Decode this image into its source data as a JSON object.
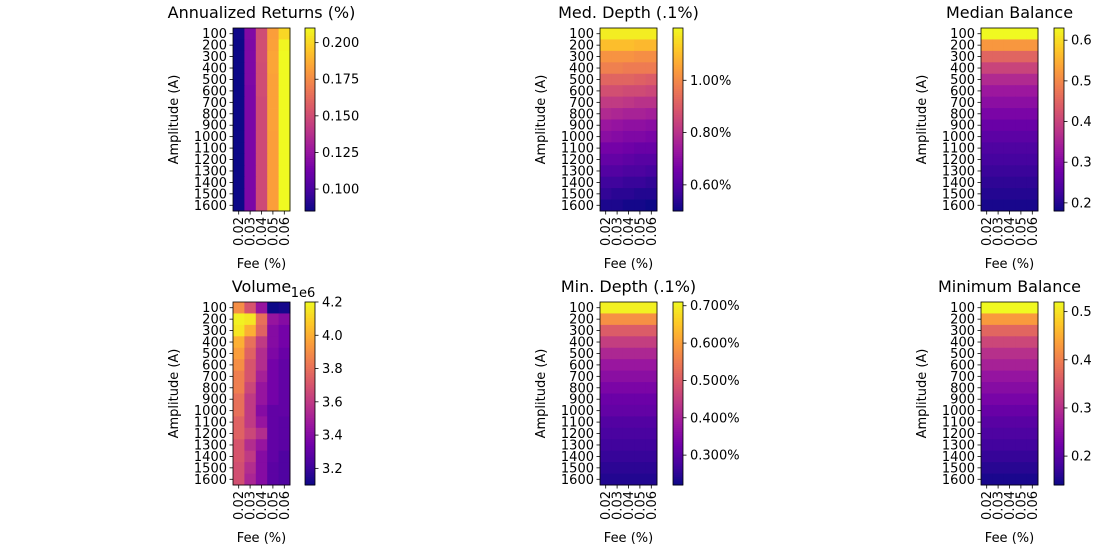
{
  "chart_data": [
    {
      "type": "heatmap",
      "title": "Annualized Returns (%)",
      "xlabel": "Fee (%)",
      "ylabel": "Amplitude (A)",
      "x_categories": [
        "0.02",
        "0.03",
        "0.04",
        "0.05",
        "0.06"
      ],
      "y_categories": [
        "100",
        "200",
        "300",
        "400",
        "500",
        "600",
        "700",
        "800",
        "900",
        "1000",
        "1100",
        "1200",
        "1300",
        "1400",
        "1500",
        "1600"
      ],
      "colorbar": {
        "min": 0.085,
        "max": 0.21,
        "ticks": [
          0.1,
          0.125,
          0.15,
          0.175,
          0.2
        ],
        "tick_labels": [
          "0.100",
          "0.125",
          "0.150",
          "0.175",
          "0.200"
        ],
        "multiplier_label": ""
      },
      "values": [
        [
          0.086,
          0.118,
          0.15,
          0.182,
          0.2
        ],
        [
          0.085,
          0.117,
          0.151,
          0.183,
          0.209
        ],
        [
          0.085,
          0.117,
          0.151,
          0.184,
          0.21
        ],
        [
          0.085,
          0.117,
          0.15,
          0.184,
          0.21
        ],
        [
          0.085,
          0.117,
          0.15,
          0.183,
          0.21
        ],
        [
          0.085,
          0.116,
          0.15,
          0.183,
          0.21
        ],
        [
          0.085,
          0.116,
          0.149,
          0.183,
          0.21
        ],
        [
          0.085,
          0.116,
          0.149,
          0.183,
          0.21
        ],
        [
          0.085,
          0.116,
          0.149,
          0.183,
          0.21
        ],
        [
          0.085,
          0.116,
          0.149,
          0.182,
          0.21
        ],
        [
          0.085,
          0.116,
          0.149,
          0.182,
          0.21
        ],
        [
          0.085,
          0.116,
          0.149,
          0.182,
          0.21
        ],
        [
          0.085,
          0.116,
          0.149,
          0.182,
          0.21
        ],
        [
          0.085,
          0.116,
          0.149,
          0.182,
          0.21
        ],
        [
          0.085,
          0.116,
          0.149,
          0.182,
          0.21
        ],
        [
          0.085,
          0.116,
          0.149,
          0.182,
          0.21
        ]
      ]
    },
    {
      "type": "heatmap",
      "title": "Med. Depth (.1%)",
      "xlabel": "Fee (%)",
      "ylabel": "Amplitude (A)",
      "x_categories": [
        "0.02",
        "0.03",
        "0.04",
        "0.05",
        "0.06"
      ],
      "y_categories": [
        "100",
        "200",
        "300",
        "400",
        "500",
        "600",
        "700",
        "800",
        "900",
        "1000",
        "1100",
        "1200",
        "1300",
        "1400",
        "1500",
        "1600"
      ],
      "colorbar": {
        "min": 0.5,
        "max": 1.2,
        "ticks": [
          0.6,
          0.8,
          1.0
        ],
        "tick_labels": [
          "0.60%",
          "0.80%",
          "1.00%"
        ],
        "multiplier_label": ""
      },
      "values": [
        [
          1.18,
          1.18,
          1.18,
          1.18,
          1.18
        ],
        [
          1.1,
          1.1,
          1.1,
          1.09,
          1.09
        ],
        [
          1.02,
          1.02,
          1.02,
          1.01,
          1.01
        ],
        [
          0.98,
          0.98,
          0.97,
          0.97,
          0.97
        ],
        [
          0.92,
          0.92,
          0.92,
          0.91,
          0.9
        ],
        [
          0.87,
          0.87,
          0.86,
          0.86,
          0.85
        ],
        [
          0.82,
          0.82,
          0.81,
          0.8,
          0.8
        ],
        [
          0.78,
          0.77,
          0.76,
          0.76,
          0.75
        ],
        [
          0.73,
          0.72,
          0.71,
          0.71,
          0.7
        ],
        [
          0.7,
          0.69,
          0.68,
          0.68,
          0.67
        ],
        [
          0.66,
          0.66,
          0.65,
          0.64,
          0.64
        ],
        [
          0.63,
          0.63,
          0.62,
          0.61,
          0.61
        ],
        [
          0.6,
          0.6,
          0.59,
          0.59,
          0.58
        ],
        [
          0.57,
          0.57,
          0.56,
          0.56,
          0.55
        ],
        [
          0.55,
          0.54,
          0.54,
          0.53,
          0.53
        ],
        [
          0.52,
          0.52,
          0.51,
          0.51,
          0.5
        ]
      ]
    },
    {
      "type": "heatmap",
      "title": "Median Balance",
      "xlabel": "Fee (%)",
      "ylabel": "Amplitude (A)",
      "x_categories": [
        "0.02",
        "0.03",
        "0.04",
        "0.05",
        "0.06"
      ],
      "y_categories": [
        "100",
        "200",
        "300",
        "400",
        "500",
        "600",
        "700",
        "800",
        "900",
        "1000",
        "1100",
        "1200",
        "1300",
        "1400",
        "1500",
        "1600"
      ],
      "colorbar": {
        "min": 0.18,
        "max": 0.63,
        "ticks": [
          0.2,
          0.3,
          0.4,
          0.5,
          0.6
        ],
        "tick_labels": [
          "0.2",
          "0.3",
          "0.4",
          "0.5",
          "0.6"
        ],
        "multiplier_label": ""
      },
      "values": [
        [
          0.63,
          0.63,
          0.63,
          0.63,
          0.63
        ],
        [
          0.52,
          0.52,
          0.52,
          0.52,
          0.52
        ],
        [
          0.45,
          0.45,
          0.45,
          0.45,
          0.45
        ],
        [
          0.4,
          0.4,
          0.4,
          0.4,
          0.4
        ],
        [
          0.36,
          0.36,
          0.36,
          0.36,
          0.36
        ],
        [
          0.33,
          0.33,
          0.33,
          0.33,
          0.33
        ],
        [
          0.31,
          0.31,
          0.31,
          0.31,
          0.31
        ],
        [
          0.29,
          0.29,
          0.29,
          0.29,
          0.29
        ],
        [
          0.27,
          0.27,
          0.27,
          0.27,
          0.27
        ],
        [
          0.255,
          0.255,
          0.255,
          0.255,
          0.255
        ],
        [
          0.24,
          0.24,
          0.24,
          0.24,
          0.24
        ],
        [
          0.23,
          0.23,
          0.23,
          0.23,
          0.23
        ],
        [
          0.22,
          0.22,
          0.22,
          0.22,
          0.22
        ],
        [
          0.21,
          0.21,
          0.21,
          0.21,
          0.21
        ],
        [
          0.2,
          0.2,
          0.2,
          0.2,
          0.2
        ],
        [
          0.19,
          0.19,
          0.19,
          0.19,
          0.19
        ]
      ]
    },
    {
      "type": "heatmap",
      "title": "Volume",
      "xlabel": "Fee (%)",
      "ylabel": "Amplitude (A)",
      "x_categories": [
        "0.02",
        "0.03",
        "0.04",
        "0.05",
        "0.06"
      ],
      "y_categories": [
        "100",
        "200",
        "300",
        "400",
        "500",
        "600",
        "700",
        "800",
        "900",
        "1000",
        "1100",
        "1200",
        "1300",
        "1400",
        "1500",
        "1600"
      ],
      "colorbar": {
        "min": 3.1,
        "max": 4.2,
        "ticks": [
          3.2,
          3.4,
          3.6,
          3.8,
          4.0,
          4.2
        ],
        "tick_labels": [
          "3.2",
          "3.4",
          "3.6",
          "3.8",
          "4.0",
          "4.2"
        ],
        "multiplier_label": "1e6"
      },
      "values": [
        [
          3.9,
          3.7,
          3.45,
          3.1,
          3.12
        ],
        [
          4.18,
          4.15,
          3.8,
          3.45,
          3.4
        ],
        [
          4.15,
          4.0,
          3.75,
          3.4,
          3.35
        ],
        [
          4.0,
          3.8,
          3.6,
          3.4,
          3.35
        ],
        [
          3.95,
          3.75,
          3.55,
          3.38,
          3.32
        ],
        [
          3.9,
          3.7,
          3.55,
          3.35,
          3.3
        ],
        [
          3.85,
          3.7,
          3.5,
          3.35,
          3.3
        ],
        [
          3.85,
          3.65,
          3.45,
          3.35,
          3.3
        ],
        [
          3.8,
          3.6,
          3.45,
          3.35,
          3.3
        ],
        [
          3.8,
          3.6,
          3.4,
          3.3,
          3.3
        ],
        [
          3.75,
          3.6,
          3.45,
          3.3,
          3.28
        ],
        [
          3.75,
          3.65,
          3.55,
          3.3,
          3.28
        ],
        [
          3.7,
          3.55,
          3.45,
          3.3,
          3.28
        ],
        [
          3.7,
          3.6,
          3.4,
          3.3,
          3.25
        ],
        [
          3.68,
          3.55,
          3.4,
          3.28,
          3.25
        ],
        [
          3.68,
          3.52,
          3.4,
          3.28,
          3.25
        ]
      ]
    },
    {
      "type": "heatmap",
      "title": "Min. Depth (.1%)",
      "xlabel": "Fee (%)",
      "ylabel": "Amplitude (A)",
      "x_categories": [
        "0.02",
        "0.03",
        "0.04",
        "0.05",
        "0.06"
      ],
      "y_categories": [
        "100",
        "200",
        "300",
        "400",
        "500",
        "600",
        "700",
        "800",
        "900",
        "1000",
        "1100",
        "1200",
        "1300",
        "1400",
        "1500",
        "1600"
      ],
      "colorbar": {
        "min": 0.22,
        "max": 0.71,
        "ticks": [
          0.3,
          0.4,
          0.5,
          0.6,
          0.7
        ],
        "tick_labels": [
          "0.300%",
          "0.400%",
          "0.500%",
          "0.600%",
          "0.700%"
        ],
        "multiplier_label": ""
      },
      "values": [
        [
          0.7,
          0.7,
          0.7,
          0.7,
          0.7
        ],
        [
          0.58,
          0.58,
          0.58,
          0.58,
          0.58
        ],
        [
          0.5,
          0.5,
          0.5,
          0.5,
          0.5
        ],
        [
          0.45,
          0.45,
          0.45,
          0.45,
          0.45
        ],
        [
          0.41,
          0.41,
          0.41,
          0.41,
          0.41
        ],
        [
          0.38,
          0.38,
          0.38,
          0.38,
          0.38
        ],
        [
          0.36,
          0.36,
          0.36,
          0.36,
          0.36
        ],
        [
          0.34,
          0.34,
          0.34,
          0.34,
          0.34
        ],
        [
          0.32,
          0.32,
          0.32,
          0.32,
          0.32
        ],
        [
          0.31,
          0.31,
          0.31,
          0.31,
          0.31
        ],
        [
          0.29,
          0.29,
          0.29,
          0.29,
          0.29
        ],
        [
          0.28,
          0.28,
          0.28,
          0.28,
          0.28
        ],
        [
          0.27,
          0.27,
          0.27,
          0.27,
          0.27
        ],
        [
          0.26,
          0.26,
          0.26,
          0.26,
          0.26
        ],
        [
          0.25,
          0.25,
          0.25,
          0.25,
          0.25
        ],
        [
          0.24,
          0.24,
          0.24,
          0.24,
          0.24
        ]
      ]
    },
    {
      "type": "heatmap",
      "title": "Minimum Balance",
      "xlabel": "Fee (%)",
      "ylabel": "Amplitude (A)",
      "x_categories": [
        "0.02",
        "0.03",
        "0.04",
        "0.05",
        "0.06"
      ],
      "y_categories": [
        "100",
        "200",
        "300",
        "400",
        "500",
        "600",
        "700",
        "800",
        "900",
        "1000",
        "1100",
        "1200",
        "1300",
        "1400",
        "1500",
        "1600"
      ],
      "colorbar": {
        "min": 0.14,
        "max": 0.52,
        "ticks": [
          0.2,
          0.3,
          0.4,
          0.5
        ],
        "tick_labels": [
          "0.2",
          "0.3",
          "0.4",
          "0.5"
        ],
        "multiplier_label": ""
      },
      "values": [
        [
          0.52,
          0.52,
          0.52,
          0.52,
          0.52
        ],
        [
          0.43,
          0.43,
          0.43,
          0.43,
          0.43
        ],
        [
          0.37,
          0.37,
          0.37,
          0.37,
          0.37
        ],
        [
          0.33,
          0.33,
          0.33,
          0.33,
          0.33
        ],
        [
          0.3,
          0.3,
          0.3,
          0.3,
          0.3
        ],
        [
          0.28,
          0.28,
          0.28,
          0.28,
          0.28
        ],
        [
          0.26,
          0.26,
          0.26,
          0.26,
          0.26
        ],
        [
          0.245,
          0.245,
          0.245,
          0.245,
          0.245
        ],
        [
          0.23,
          0.23,
          0.23,
          0.23,
          0.23
        ],
        [
          0.215,
          0.215,
          0.215,
          0.215,
          0.215
        ],
        [
          0.2,
          0.2,
          0.2,
          0.2,
          0.2
        ],
        [
          0.19,
          0.19,
          0.19,
          0.19,
          0.19
        ],
        [
          0.18,
          0.18,
          0.18,
          0.18,
          0.18
        ],
        [
          0.17,
          0.17,
          0.17,
          0.17,
          0.17
        ],
        [
          0.16,
          0.16,
          0.16,
          0.16,
          0.16
        ],
        [
          0.15,
          0.15,
          0.15,
          0.15,
          0.15
        ]
      ]
    }
  ],
  "colormap": {
    "name": "plasma",
    "stops": [
      "#0d0887",
      "#46039f",
      "#7201a8",
      "#9c179e",
      "#bd3786",
      "#d8576b",
      "#ed7953",
      "#fb9f3a",
      "#fdca26",
      "#f0f921"
    ]
  }
}
